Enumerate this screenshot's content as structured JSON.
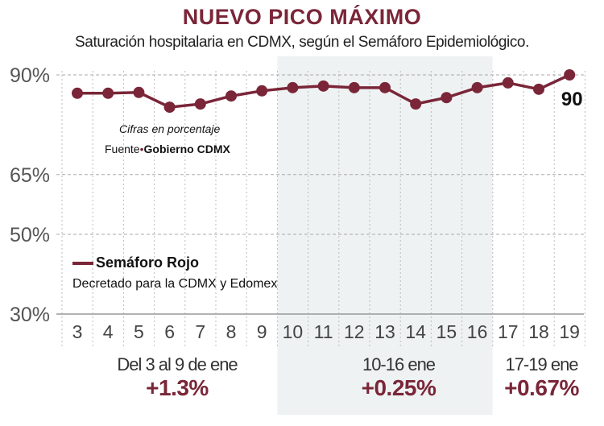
{
  "title": "NUEVO PICO MÁXIMO",
  "subtitle": "Saturación hospitalaria en CDMX, según el Semáforo Epidemiológico.",
  "notes": {
    "units": "Cifras en porcentaje",
    "source_label": "Fuente",
    "source": "Gobierno CDMX"
  },
  "legend": {
    "title": "Semáforo Rojo",
    "subtitle": "Decretado para la CDMX y Edomex"
  },
  "colors": {
    "series": "#7a2638",
    "shade": "#eef2f2",
    "grid": "#bbbbbb"
  },
  "periods": [
    {
      "label": "Del 3 al 9 de ene",
      "change": "+1.3%"
    },
    {
      "label": "10-16 ene",
      "change": "+0.25%"
    },
    {
      "label": "17-19 ene",
      "change": "+0.67%"
    }
  ],
  "chart_data": {
    "type": "line",
    "x": [
      "3",
      "4",
      "5",
      "6",
      "7",
      "8",
      "9",
      "10",
      "11",
      "12",
      "13",
      "14",
      "15",
      "16",
      "17",
      "18",
      "19"
    ],
    "series": [
      {
        "values": [
          85.4,
          85.4,
          85.6,
          81.9,
          82.7,
          84.7,
          86.0,
          86.8,
          87.2,
          86.8,
          86.8,
          82.7,
          84.3,
          86.8,
          88.0,
          86.4,
          90
        ]
      }
    ],
    "y_ticks": [
      "90%",
      "65%",
      "50%",
      "30%"
    ],
    "y_tick_values": [
      90,
      65,
      50,
      30
    ],
    "ylim": [
      30,
      90
    ],
    "last_point_label": "90",
    "shaded_range": [
      "10",
      "16"
    ],
    "grid": "dotted vertical, dashed at 90%"
  }
}
